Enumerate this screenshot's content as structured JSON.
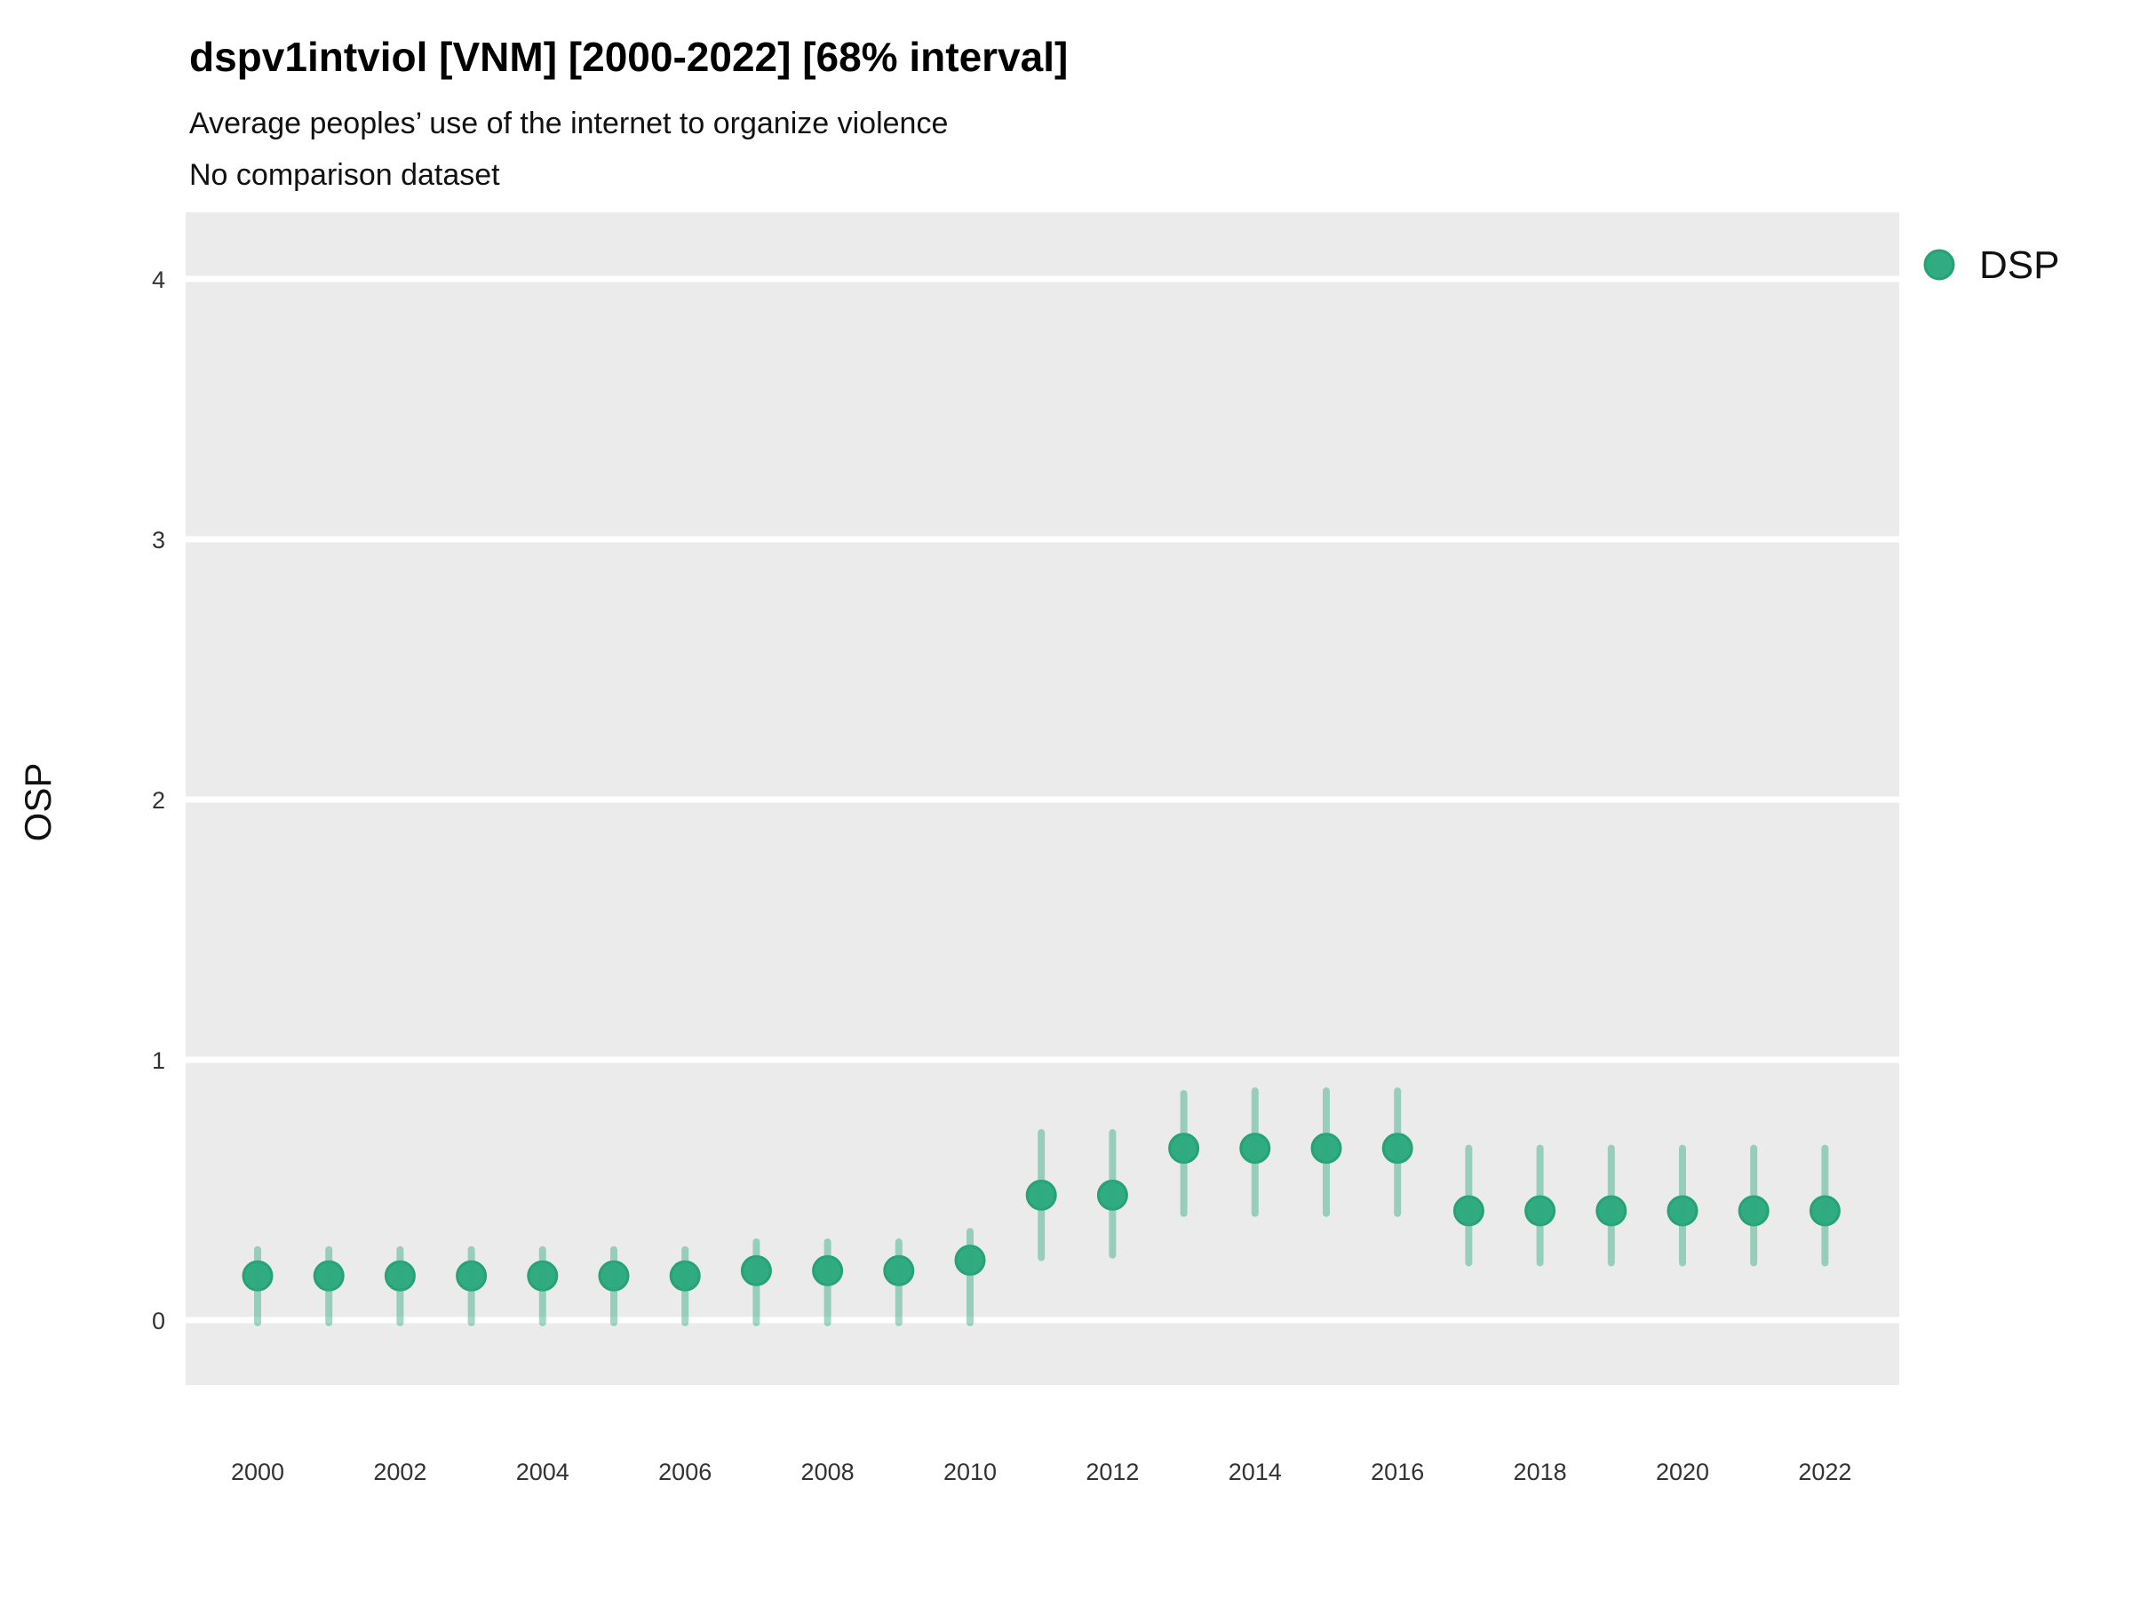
{
  "chart_data": {
    "type": "scatter",
    "variant": "point-interval",
    "title": "dspv1intviol [VNM] [2000-2022] [68% interval]",
    "subtitle": "Average peoples’ use of the internet to organize violence",
    "note": "No comparison dataset",
    "ylabel": "OSP",
    "xlabel": "",
    "ylim": [
      -0.25,
      4.25
    ],
    "yticks": [
      0,
      1,
      2,
      3,
      4
    ],
    "xticks": [
      2000,
      2002,
      2004,
      2006,
      2008,
      2010,
      2012,
      2014,
      2016,
      2018,
      2020,
      2022
    ],
    "grid": "horizontal-major-only",
    "legend_position": "right-top",
    "legend": [
      {
        "label": "DSP",
        "color": "#31ab81"
      }
    ],
    "colors": {
      "panel_background": "#ebebeb",
      "gridline": "#ffffff",
      "point_fill": "#31ab81",
      "point_stroke": "#27a275",
      "interval_bar": "rgba(49,171,129,0.45)",
      "page_background": "#ffffff"
    },
    "series": [
      {
        "name": "DSP",
        "points": [
          {
            "year": 2000,
            "value": 0.17,
            "lo": -0.01,
            "hi": 0.27
          },
          {
            "year": 2001,
            "value": 0.17,
            "lo": -0.01,
            "hi": 0.27
          },
          {
            "year": 2002,
            "value": 0.17,
            "lo": -0.01,
            "hi": 0.27
          },
          {
            "year": 2003,
            "value": 0.17,
            "lo": -0.01,
            "hi": 0.27
          },
          {
            "year": 2004,
            "value": 0.17,
            "lo": -0.01,
            "hi": 0.27
          },
          {
            "year": 2005,
            "value": 0.17,
            "lo": -0.01,
            "hi": 0.27
          },
          {
            "year": 2006,
            "value": 0.17,
            "lo": -0.01,
            "hi": 0.27
          },
          {
            "year": 2007,
            "value": 0.19,
            "lo": -0.01,
            "hi": 0.3
          },
          {
            "year": 2008,
            "value": 0.19,
            "lo": -0.01,
            "hi": 0.3
          },
          {
            "year": 2009,
            "value": 0.19,
            "lo": -0.01,
            "hi": 0.3
          },
          {
            "year": 2010,
            "value": 0.23,
            "lo": -0.01,
            "hi": 0.34
          },
          {
            "year": 2011,
            "value": 0.48,
            "lo": 0.24,
            "hi": 0.72
          },
          {
            "year": 2012,
            "value": 0.48,
            "lo": 0.25,
            "hi": 0.72
          },
          {
            "year": 2013,
            "value": 0.66,
            "lo": 0.41,
            "hi": 0.87
          },
          {
            "year": 2014,
            "value": 0.66,
            "lo": 0.41,
            "hi": 0.88
          },
          {
            "year": 2015,
            "value": 0.66,
            "lo": 0.41,
            "hi": 0.88
          },
          {
            "year": 2016,
            "value": 0.66,
            "lo": 0.41,
            "hi": 0.88
          },
          {
            "year": 2017,
            "value": 0.42,
            "lo": 0.22,
            "hi": 0.66
          },
          {
            "year": 2018,
            "value": 0.42,
            "lo": 0.22,
            "hi": 0.66
          },
          {
            "year": 2019,
            "value": 0.42,
            "lo": 0.22,
            "hi": 0.66
          },
          {
            "year": 2020,
            "value": 0.42,
            "lo": 0.22,
            "hi": 0.66
          },
          {
            "year": 2021,
            "value": 0.42,
            "lo": 0.22,
            "hi": 0.66
          },
          {
            "year": 2022,
            "value": 0.42,
            "lo": 0.22,
            "hi": 0.66
          }
        ]
      }
    ]
  }
}
